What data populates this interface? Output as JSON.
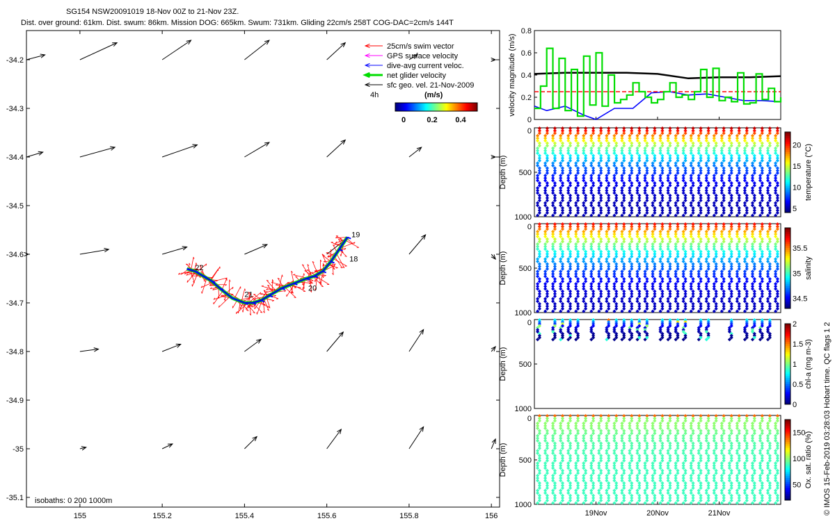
{
  "title": {
    "line1": "SG154 NSW20091019 18-Nov 00Z to 21-Nov 23Z.",
    "line2": "Dist. over ground: 61km. Dist. swum: 86km. Mission DOG: 665km. Swum: 731km. Gliding 22cm/s 258T COG-DAC=2cm/s 144T"
  },
  "colors": {
    "swim": "#ff0000",
    "gps": "#ff00ff",
    "dac": "#0000ff",
    "net": "#00dd00",
    "geo": "#000000",
    "ref": "#ff0000"
  },
  "legend": [
    {
      "key": "swim",
      "label": "25cm/s swim vector"
    },
    {
      "key": "gps",
      "label": "GPS surface velocity"
    },
    {
      "key": "dac",
      "label": "dive-avg current veloc."
    },
    {
      "key": "net",
      "label": "net glider velocity"
    },
    {
      "key": "geo",
      "label": "sfc geo. vel. 21-Nov-2009"
    }
  ],
  "scale_label": "4h",
  "colorbar": {
    "label": "(m/s)",
    "ticks": [
      "0",
      "0.2",
      "0.4"
    ]
  },
  "isobaths_label": "isobaths: 0   200  1000m",
  "copyright": "© IMOS 15-Feb-2019 03:28:03 Hobart time. QC flags 1  2",
  "chart_data": [
    {
      "type": "scatter",
      "title": "",
      "xlabel": "",
      "ylabel": "",
      "xlim": [
        154.87,
        156.02
      ],
      "ylim": [
        -35.12,
        -34.14
      ],
      "xticks": [
        "155",
        "155.2",
        "155.4",
        "155.6",
        "155.8",
        "156"
      ],
      "yticks": [
        "-34.2",
        "-34.3",
        "-34.4",
        "-34.5",
        "-34.6",
        "-34.7",
        "-34.8",
        "-34.9",
        "-35",
        "-35.1"
      ],
      "track": {
        "lon": [
          155.65,
          155.63,
          155.61,
          155.59,
          155.57,
          155.55,
          155.52,
          155.49,
          155.46,
          155.44,
          155.42,
          155.4,
          155.37,
          155.34,
          155.32,
          155.3,
          155.28,
          155.26
        ],
        "lat": [
          -34.565,
          -34.59,
          -34.615,
          -34.635,
          -34.645,
          -34.65,
          -34.66,
          -34.67,
          -34.685,
          -34.695,
          -34.7,
          -34.7,
          -34.69,
          -34.67,
          -34.655,
          -34.645,
          -34.635,
          -34.63
        ]
      },
      "day_labels": [
        {
          "text": "19",
          "lon": 155.66,
          "lat": -34.565
        },
        {
          "text": "18",
          "lon": 155.655,
          "lat": -34.615
        },
        {
          "text": "20",
          "lon": 155.555,
          "lat": -34.675
        },
        {
          "text": "21",
          "lon": 155.4,
          "lat": -34.688
        },
        {
          "text": "22",
          "lon": 155.28,
          "lat": -34.633
        }
      ],
      "geo_vectors": [
        [
          154.87,
          -34.2,
          0.045,
          0.01
        ],
        [
          155.0,
          -34.2,
          0.09,
          0.035
        ],
        [
          155.2,
          -34.2,
          0.07,
          0.04
        ],
        [
          155.4,
          -34.2,
          0.06,
          0.04
        ],
        [
          155.6,
          -34.2,
          0.045,
          0.035
        ],
        [
          155.8,
          -34.2,
          0.02,
          0.01
        ],
        [
          156.0,
          -34.2,
          0.01,
          0.0
        ],
        [
          154.87,
          -34.4,
          0.04,
          0.01
        ],
        [
          155.0,
          -34.4,
          0.085,
          0.02
        ],
        [
          155.2,
          -34.4,
          0.085,
          0.025
        ],
        [
          155.4,
          -34.4,
          0.06,
          0.03
        ],
        [
          155.6,
          -34.4,
          0.045,
          0.035
        ],
        [
          155.8,
          -34.4,
          0.03,
          0.02
        ],
        [
          156.0,
          -34.4,
          0.01,
          0.0
        ],
        [
          154.87,
          -34.6,
          0.005,
          0.0
        ],
        [
          155.0,
          -34.6,
          0.07,
          0.01
        ],
        [
          155.2,
          -34.6,
          0.06,
          0.015
        ],
        [
          155.4,
          -34.6,
          0.055,
          0.02
        ],
        [
          155.6,
          -34.6,
          0.045,
          0.03
        ],
        [
          155.8,
          -34.6,
          0.04,
          0.04
        ],
        [
          156.0,
          -34.6,
          0.01,
          -0.01
        ],
        [
          155.0,
          -34.8,
          0.045,
          0.005
        ],
        [
          155.2,
          -34.8,
          0.045,
          0.015
        ],
        [
          155.4,
          -34.8,
          0.04,
          0.025
        ],
        [
          155.6,
          -34.8,
          0.04,
          0.04
        ],
        [
          155.8,
          -34.8,
          0.035,
          0.045
        ],
        [
          156.0,
          -34.8,
          0.01,
          0.01
        ],
        [
          155.0,
          -35.0,
          0.015,
          0.003
        ],
        [
          155.2,
          -35.0,
          0.025,
          0.01
        ],
        [
          155.4,
          -35.0,
          0.03,
          0.025
        ],
        [
          155.6,
          -35.0,
          0.035,
          0.04
        ],
        [
          155.8,
          -35.0,
          0.035,
          0.045
        ],
        [
          156.0,
          -35.0,
          0.01,
          0.02
        ]
      ]
    },
    {
      "type": "line",
      "title": "",
      "ylabel": "velocity magnitude (m/s)",
      "ylim": [
        0,
        0.8
      ],
      "yticks": [
        "0",
        "0.2",
        "0.4",
        "0.6",
        "0.8"
      ],
      "xlim": [
        18.0,
        22.0
      ],
      "series": [
        {
          "key": "geo",
          "x": [
            18.0,
            18.5,
            19.0,
            19.5,
            20.0,
            20.5,
            21.0,
            21.5,
            22.0
          ],
          "values": [
            0.41,
            0.42,
            0.42,
            0.42,
            0.41,
            0.37,
            0.38,
            0.38,
            0.39
          ]
        },
        {
          "key": "dac",
          "x": [
            18.0,
            18.2,
            18.5,
            18.8,
            19.0,
            19.3,
            19.6,
            19.9,
            20.2,
            20.5,
            20.8,
            21.1,
            21.4,
            21.7,
            22.0
          ],
          "values": [
            0.12,
            0.08,
            0.12,
            0.04,
            0.0,
            0.1,
            0.1,
            0.24,
            0.25,
            0.22,
            0.23,
            0.2,
            0.17,
            0.17,
            0.16
          ]
        },
        {
          "key": "ref",
          "x": [
            18.0,
            22.0
          ],
          "values": [
            0.25,
            0.25
          ]
        },
        {
          "key": "net",
          "x": [
            18.0,
            18.1,
            18.2,
            18.3,
            18.4,
            18.5,
            18.6,
            18.7,
            18.8,
            18.9,
            19.0,
            19.1,
            19.2,
            19.3,
            19.4,
            19.5,
            19.6,
            19.7,
            19.8,
            19.9,
            20.0,
            20.1,
            20.2,
            20.3,
            20.4,
            20.5,
            20.6,
            20.7,
            20.8,
            20.9,
            21.0,
            21.1,
            21.2,
            21.3,
            21.4,
            21.5,
            21.6,
            21.7,
            21.8,
            21.9,
            22.0
          ],
          "values": [
            0.1,
            0.3,
            0.64,
            0.1,
            0.55,
            0.08,
            0.45,
            0.03,
            0.57,
            0.13,
            0.6,
            0.12,
            0.4,
            0.15,
            0.18,
            0.22,
            0.33,
            0.25,
            0.2,
            0.15,
            0.18,
            0.25,
            0.33,
            0.2,
            0.22,
            0.18,
            0.25,
            0.45,
            0.2,
            0.46,
            0.17,
            0.2,
            0.16,
            0.42,
            0.14,
            0.15,
            0.41,
            0.18,
            0.28,
            0.16,
            0.2
          ]
        }
      ]
    },
    {
      "type": "scatter",
      "ylabel": "Depth (m)",
      "colorbar_label": "temperature (°C)",
      "clim": [
        4,
        23
      ],
      "cbticks": [
        "5",
        "10",
        "15",
        "20"
      ],
      "ylim": [
        1000,
        0
      ],
      "yticks": [
        "0",
        "500",
        "1000"
      ],
      "profiles": 32,
      "surface_value": 22,
      "bottom_value": 5
    },
    {
      "type": "scatter",
      "ylabel": "Depth (m)",
      "colorbar_label": "salinity",
      "clim": [
        34.3,
        35.9
      ],
      "cbticks": [
        "34.5",
        "35",
        "35.5"
      ],
      "ylim": [
        1000,
        0
      ],
      "yticks": [
        "0",
        "500",
        "1000"
      ],
      "profiles": 32,
      "surface_value": 35.7,
      "bottom_value": 34.4
    },
    {
      "type": "scatter",
      "ylabel": "Depth (m)",
      "colorbar_label": "chl-a (mg m-3)",
      "clim": [
        0,
        2
      ],
      "cbticks": [
        "0",
        "0.5",
        "1",
        "1.5",
        "2"
      ],
      "ylim": [
        1000,
        0
      ],
      "yticks": [
        "0",
        "500",
        "1000"
      ],
      "profiles": 32,
      "surface_value": 0.8,
      "bottom_value": 0.05
    },
    {
      "type": "scatter",
      "ylabel": "Depth (m)",
      "colorbar_label": "Ox. sat. ratio (%)",
      "clim": [
        20,
        175
      ],
      "cbticks": [
        "50",
        "100",
        "150"
      ],
      "ylim": [
        1000,
        0
      ],
      "yticks": [
        "0",
        "500",
        "1000"
      ],
      "xticks": [
        "19Nov",
        "20Nov",
        "21Nov"
      ],
      "profiles": 32,
      "surface_value": 100,
      "bottom_value": 75
    }
  ]
}
